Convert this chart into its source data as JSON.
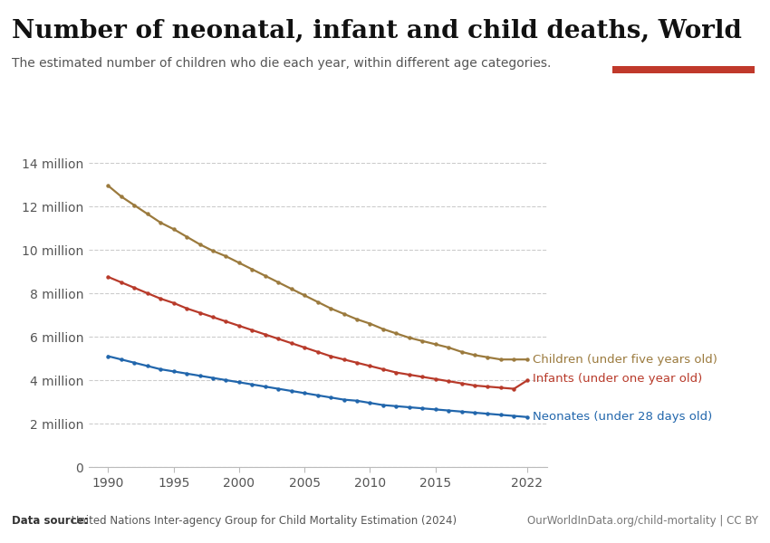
{
  "title": "Number of neonatal, infant and child deaths, World",
  "subtitle": "The estimated number of children who die each year, within different age categories.",
  "datasource_bold": "Data source:",
  "datasource_rest": " United Nations Inter-agency Group for Child Mortality Estimation (2024)",
  "copyright": "OurWorldInData.org/child-mortality | CC BY",
  "xlim": [
    1988.5,
    2023.5
  ],
  "ylim": [
    0,
    15000000
  ],
  "yticks": [
    0,
    2000000,
    4000000,
    6000000,
    8000000,
    10000000,
    12000000,
    14000000
  ],
  "ytick_labels": [
    "0",
    "2 million",
    "4 million",
    "6 million",
    "8 million",
    "10 million",
    "12 million",
    "14 million"
  ],
  "xticks": [
    1990,
    1995,
    2000,
    2005,
    2010,
    2015,
    2022
  ],
  "children_color": "#9b7a3d",
  "infants_color": "#b83a2a",
  "neonates_color": "#2166ac",
  "children_label": "Children (under five years old)",
  "infants_label": "Infants (under one year old)",
  "neonates_label": "Neonates (under 28 days old)",
  "years": [
    1990,
    1991,
    1992,
    1993,
    1994,
    1995,
    1996,
    1997,
    1998,
    1999,
    2000,
    2001,
    2002,
    2003,
    2004,
    2005,
    2006,
    2007,
    2008,
    2009,
    2010,
    2011,
    2012,
    2013,
    2014,
    2015,
    2016,
    2017,
    2018,
    2019,
    2020,
    2021,
    2022
  ],
  "children": [
    12950000,
    12450000,
    12050000,
    11650000,
    11250000,
    10950000,
    10600000,
    10250000,
    9950000,
    9700000,
    9400000,
    9100000,
    8800000,
    8500000,
    8200000,
    7900000,
    7600000,
    7300000,
    7050000,
    6800000,
    6600000,
    6350000,
    6150000,
    5950000,
    5800000,
    5650000,
    5500000,
    5300000,
    5150000,
    5050000,
    4950000,
    4950000,
    4950000
  ],
  "infants": [
    8750000,
    8500000,
    8250000,
    8000000,
    7750000,
    7550000,
    7300000,
    7100000,
    6900000,
    6700000,
    6500000,
    6300000,
    6100000,
    5900000,
    5700000,
    5500000,
    5300000,
    5100000,
    4950000,
    4800000,
    4650000,
    4500000,
    4350000,
    4250000,
    4150000,
    4050000,
    3950000,
    3850000,
    3750000,
    3700000,
    3650000,
    3600000,
    3980000
  ],
  "neonates": [
    5100000,
    4950000,
    4800000,
    4650000,
    4500000,
    4400000,
    4300000,
    4200000,
    4100000,
    4000000,
    3900000,
    3800000,
    3700000,
    3600000,
    3500000,
    3400000,
    3300000,
    3200000,
    3100000,
    3050000,
    2950000,
    2850000,
    2800000,
    2750000,
    2700000,
    2650000,
    2600000,
    2550000,
    2500000,
    2450000,
    2400000,
    2350000,
    2300000
  ],
  "bg_color": "#ffffff",
  "grid_color": "#cccccc",
  "owid_box_bg": "#1a3a5c",
  "owid_box_red": "#c0392b",
  "title_fontsize": 20,
  "subtitle_fontsize": 10,
  "tick_fontsize": 10,
  "label_fontsize": 9.5
}
